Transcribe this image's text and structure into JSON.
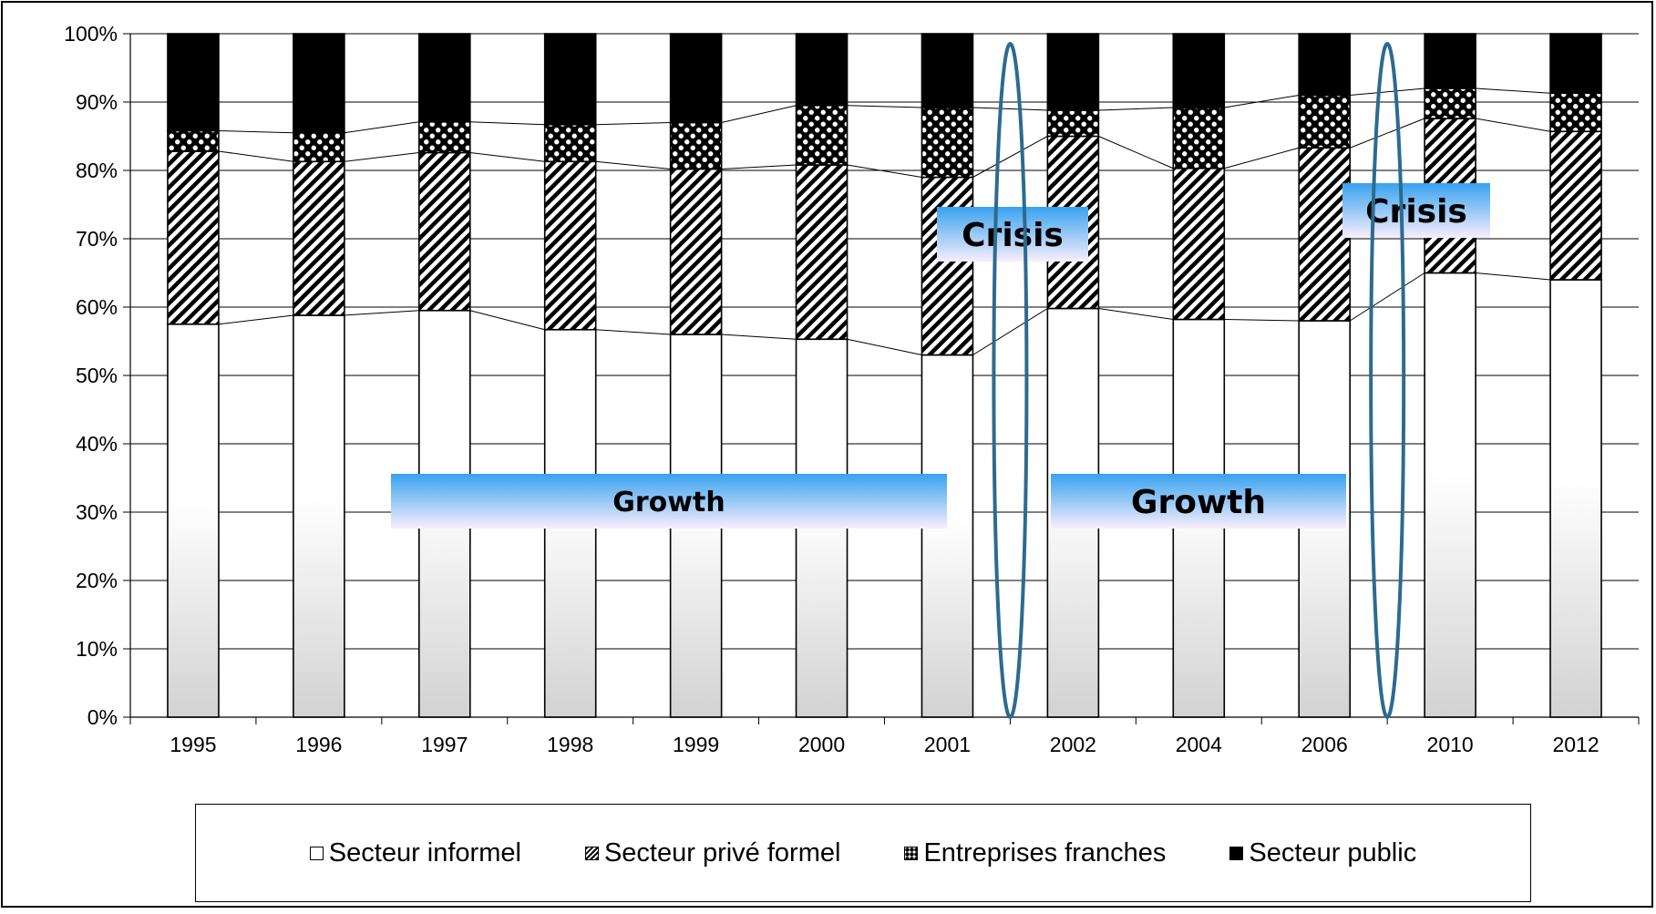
{
  "chart_data": {
    "type": "bar",
    "stacked": true,
    "title": "",
    "xlabel": "",
    "ylabel": "",
    "ylim": [
      0,
      100
    ],
    "y_ticks": [
      "0%",
      "10%",
      "20%",
      "30%",
      "40%",
      "50%",
      "60%",
      "70%",
      "80%",
      "90%",
      "100%"
    ],
    "categories": [
      "1995",
      "1996",
      "1997",
      "1998",
      "1999",
      "2000",
      "2001",
      "2002",
      "2004",
      "2006",
      "2010",
      "2012"
    ],
    "series": [
      {
        "name": "Secteur informel",
        "values": [
          57.5,
          58.8,
          59.5,
          56.7,
          56.0,
          55.3,
          53.0,
          59.8,
          58.2,
          58.0,
          65.0,
          64.0
        ]
      },
      {
        "name": "Secteur privé formel",
        "values": [
          25.3,
          22.5,
          23.1,
          24.6,
          24.2,
          25.5,
          26.0,
          25.2,
          22.1,
          25.3,
          22.6,
          21.7
        ]
      },
      {
        "name": "Entreprises franches",
        "values": [
          3.0,
          4.2,
          4.5,
          5.4,
          6.8,
          8.7,
          10.2,
          3.8,
          8.9,
          7.7,
          4.4,
          5.6
        ]
      },
      {
        "name": "Secteur public",
        "values": [
          14.2,
          14.5,
          12.9,
          13.3,
          13.0,
          10.5,
          10.8,
          11.2,
          10.8,
          9.0,
          8.0,
          8.7
        ]
      }
    ],
    "annotations": [
      {
        "type": "label",
        "text": "Growth",
        "span": [
          "1997",
          "2001"
        ]
      },
      {
        "type": "label",
        "text": "Growth",
        "span": [
          "2002",
          "2006"
        ]
      },
      {
        "type": "label",
        "text": "Crisis",
        "near": "2001-2002"
      },
      {
        "type": "label",
        "text": "Crisis",
        "near": "2006-2010"
      }
    ],
    "legend_position": "bottom",
    "grid": true
  },
  "colors": {
    "ellipse": "#2c6b8f",
    "band_top": "#38a2f0",
    "band_bottom": "#f8eefb"
  }
}
